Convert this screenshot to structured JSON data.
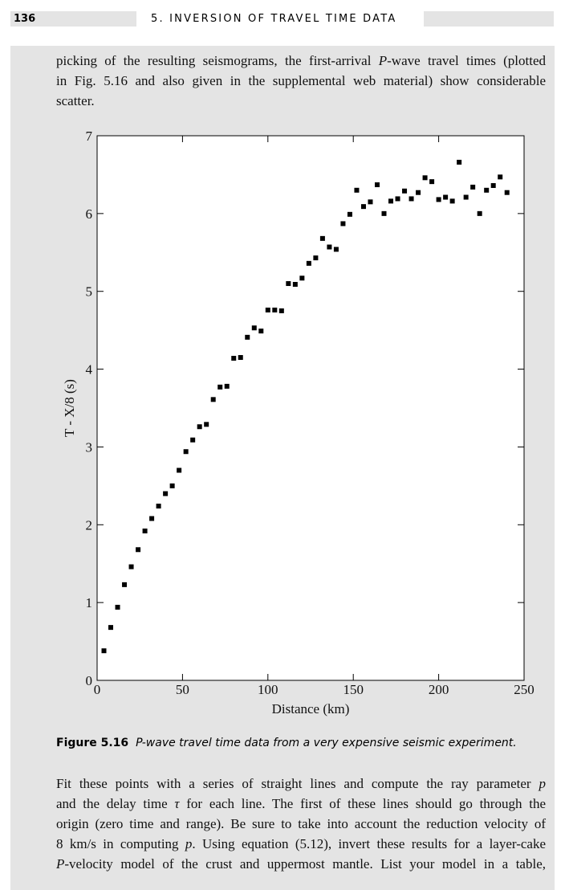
{
  "header": {
    "page_number": "136",
    "running_title": "5. INVERSION OF TRAVEL TIME DATA"
  },
  "paragraphs": [
    [
      [
        "picking of the resulting seismograms, the first-arrival ",
        "P",
        "-wave travel times (plotted"
      ],
      [
        "in Fig. 5.16 and also given in the supplemental web material) show considerable"
      ],
      [
        "scatter."
      ]
    ],
    [
      [
        "Fit these points with a series of straight lines and compute the ray parameter ",
        "p"
      ],
      [
        "and the delay time ",
        "τ",
        " for each line. The first of these lines should go through the"
      ],
      [
        "origin (zero time and range). Be sure to take into account the reduction velocity of"
      ],
      [
        "8 km/s in computing ",
        "p",
        ". Using equation (5.12), invert these results for a layer-cake"
      ],
      [
        "P",
        "-velocity model of the crust and uppermost mantle. List your model in a table,"
      ]
    ]
  ],
  "caption": {
    "label": "Figure 5.16",
    "text": "P-wave travel time data from a very expensive seismic experiment."
  },
  "chart_data": {
    "type": "scatter",
    "x_label": "Distance (km)",
    "y_label": "T - X/8 (s)",
    "color": "#000000",
    "x": [
      4,
      8,
      12,
      16,
      20,
      24,
      28,
      32,
      36,
      40,
      44,
      48,
      52,
      56,
      60,
      64,
      68,
      72,
      76,
      80,
      84,
      88,
      92,
      96,
      100,
      104,
      108,
      112,
      116,
      120,
      124,
      128,
      132,
      136,
      140,
      144,
      148,
      152,
      156,
      160,
      164,
      168,
      172,
      176,
      180,
      184,
      188,
      192,
      196,
      200,
      204,
      208,
      212,
      216,
      220,
      224,
      228,
      232,
      236,
      240
    ],
    "values": [
      0.38,
      0.68,
      0.94,
      1.23,
      1.46,
      1.68,
      1.92,
      2.08,
      2.24,
      2.4,
      2.5,
      2.7,
      2.94,
      3.09,
      3.26,
      3.29,
      3.61,
      3.77,
      3.78,
      4.14,
      4.15,
      4.41,
      4.53,
      4.49,
      4.76,
      4.76,
      4.75,
      5.1,
      5.09,
      5.17,
      5.36,
      5.43,
      5.68,
      5.57,
      5.54,
      5.87,
      5.99,
      6.3,
      6.09,
      6.15,
      6.37,
      6.0,
      6.16,
      6.19,
      6.29,
      6.19,
      6.27,
      6.46,
      6.41,
      6.18,
      6.21,
      6.16,
      6.66,
      6.21,
      6.34,
      6.0,
      6.3,
      6.36,
      6.47,
      6.27
    ],
    "xlim": [
      0,
      250
    ],
    "xticks": [
      0,
      50,
      100,
      150,
      200,
      250
    ],
    "ylim": [
      0,
      7
    ],
    "yticks": [
      0,
      1,
      2,
      3,
      4,
      5,
      6,
      7
    ]
  }
}
